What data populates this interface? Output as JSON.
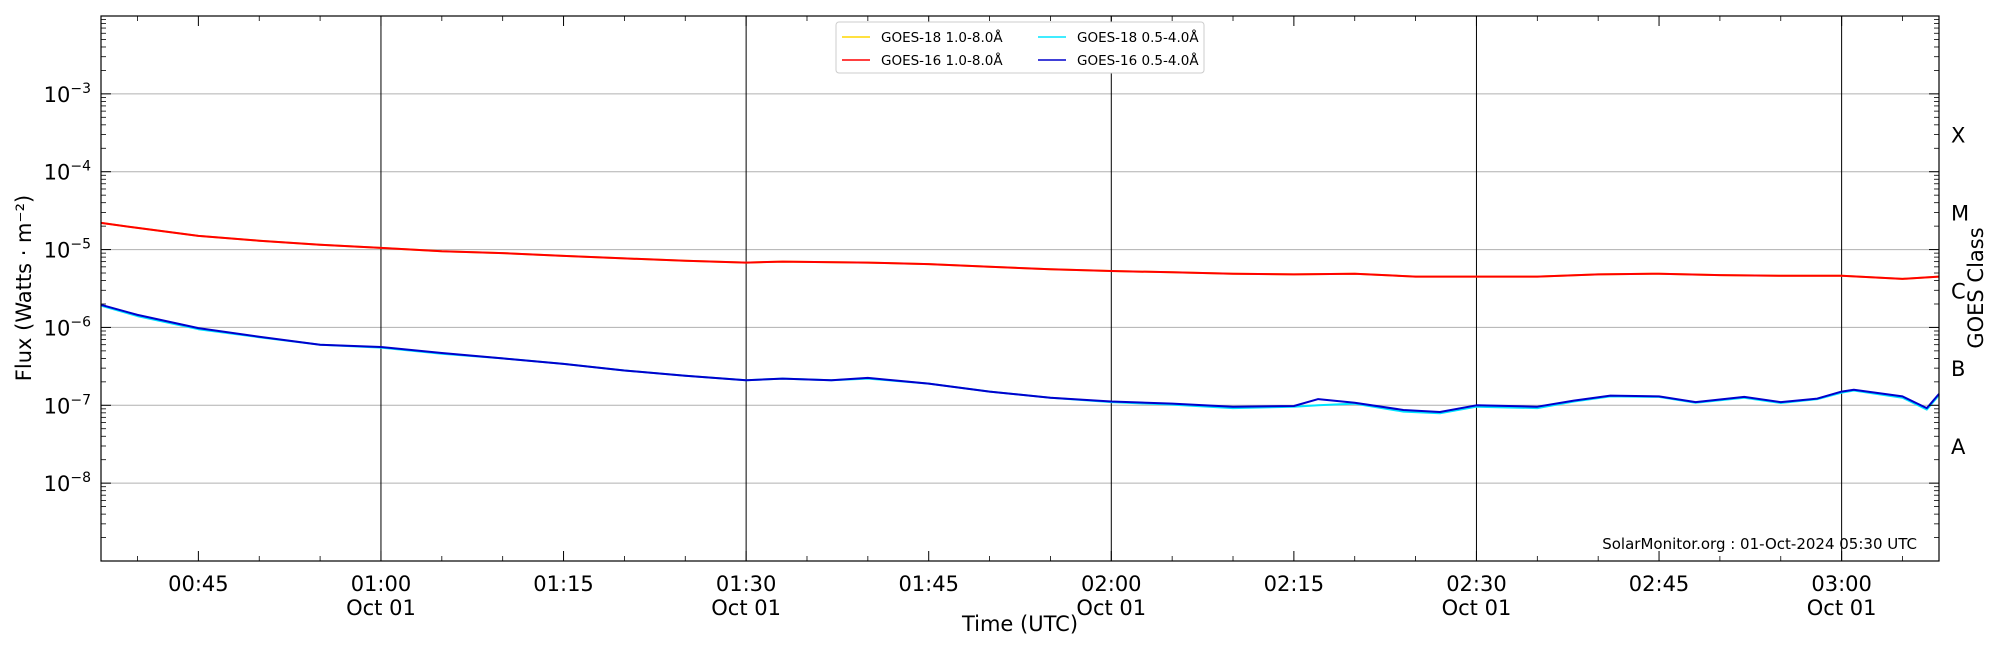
{
  "chart_data": {
    "type": "line",
    "title": "",
    "xlabel": "Time (UTC)",
    "ylabel": "Flux (Watts · m⁻²)",
    "y2label": "GOES Class",
    "yscale": "log",
    "ylim": [
      1e-09,
      0.01
    ],
    "xlim": [
      "00:37",
      "03:08"
    ],
    "grid": "y-major",
    "legend_position": "top-center",
    "credit": "SolarMonitor.org : 01-Oct-2024 05:30 UTC",
    "y_ticks": [
      {
        "value": 1e-08,
        "base": "10",
        "exp": "−8"
      },
      {
        "value": 1e-07,
        "base": "10",
        "exp": "−7"
      },
      {
        "value": 1e-06,
        "base": "10",
        "exp": "−6"
      },
      {
        "value": 1e-05,
        "base": "10",
        "exp": "−5"
      },
      {
        "value": 0.0001,
        "base": "10",
        "exp": "−4"
      },
      {
        "value": 0.001,
        "base": "10",
        "exp": "−3"
      }
    ],
    "x_ticks": [
      {
        "time": "00:45",
        "label": "00:45",
        "date": ""
      },
      {
        "time": "01:00",
        "label": "01:00",
        "date": "Oct 01"
      },
      {
        "time": "01:15",
        "label": "01:15",
        "date": ""
      },
      {
        "time": "01:30",
        "label": "01:30",
        "date": "Oct 01"
      },
      {
        "time": "01:45",
        "label": "01:45",
        "date": ""
      },
      {
        "time": "02:00",
        "label": "02:00",
        "date": "Oct 01"
      },
      {
        "time": "02:15",
        "label": "02:15",
        "date": ""
      },
      {
        "time": "02:30",
        "label": "02:30",
        "date": "Oct 01"
      },
      {
        "time": "02:45",
        "label": "02:45",
        "date": ""
      },
      {
        "time": "03:00",
        "label": "03:00",
        "date": "Oct 01"
      }
    ],
    "goes_classes": [
      {
        "label": "X",
        "value": 0.0003
      },
      {
        "label": "M",
        "value": 3e-05
      },
      {
        "label": "C",
        "value": 3e-06
      },
      {
        "label": "B",
        "value": 3e-07
      },
      {
        "label": "A",
        "value": 3e-08
      }
    ],
    "series": [
      {
        "name": "GOES-18 1.0-8.0Å",
        "color": "#ffd700",
        "x": [
          "00:37",
          "00:40",
          "00:45",
          "00:50",
          "00:55",
          "01:00",
          "01:05",
          "01:10",
          "01:15",
          "01:20",
          "01:25",
          "01:30",
          "01:33",
          "01:40",
          "01:45",
          "01:50",
          "01:55",
          "02:00",
          "02:05",
          "02:10",
          "02:15",
          "02:20",
          "02:25",
          "02:30",
          "02:35",
          "02:40",
          "02:45",
          "02:50",
          "02:55",
          "03:00",
          "03:05",
          "03:08"
        ],
        "y": [
          2.2e-05,
          1.9e-05,
          1.5e-05,
          1.3e-05,
          1.15e-05,
          1.05e-05,
          9.5e-06,
          9e-06,
          8.3e-06,
          7.7e-06,
          7.2e-06,
          6.8e-06,
          7e-06,
          6.8e-06,
          6.5e-06,
          6e-06,
          5.6e-06,
          5.3e-06,
          5.1e-06,
          4.9e-06,
          4.8e-06,
          4.9e-06,
          4.5e-06,
          4.5e-06,
          4.5e-06,
          4.8e-06,
          4.9e-06,
          4.7e-06,
          4.6e-06,
          4.6e-06,
          4.2e-06,
          4.5e-06
        ]
      },
      {
        "name": "GOES-16 1.0-8.0Å",
        "color": "#ff0000",
        "x": [
          "00:37",
          "00:40",
          "00:45",
          "00:50",
          "00:55",
          "01:00",
          "01:05",
          "01:10",
          "01:15",
          "01:20",
          "01:25",
          "01:30",
          "01:33",
          "01:40",
          "01:45",
          "01:50",
          "01:55",
          "02:00",
          "02:05",
          "02:10",
          "02:15",
          "02:20",
          "02:25",
          "02:30",
          "02:35",
          "02:40",
          "02:45",
          "02:50",
          "02:55",
          "03:00",
          "03:05",
          "03:08"
        ],
        "y": [
          2.2e-05,
          1.9e-05,
          1.5e-05,
          1.3e-05,
          1.15e-05,
          1.05e-05,
          9.5e-06,
          9e-06,
          8.3e-06,
          7.7e-06,
          7.2e-06,
          6.8e-06,
          7e-06,
          6.8e-06,
          6.5e-06,
          6e-06,
          5.6e-06,
          5.3e-06,
          5.1e-06,
          4.9e-06,
          4.8e-06,
          4.9e-06,
          4.5e-06,
          4.5e-06,
          4.5e-06,
          4.8e-06,
          4.9e-06,
          4.7e-06,
          4.6e-06,
          4.6e-06,
          4.2e-06,
          4.5e-06
        ]
      },
      {
        "name": "GOES-18 0.5-4.0Å",
        "color": "#00e5ff",
        "x": [
          "00:37",
          "00:40",
          "00:45",
          "00:50",
          "00:55",
          "01:00",
          "01:05",
          "01:10",
          "01:15",
          "01:20",
          "01:25",
          "01:30",
          "01:33",
          "01:37",
          "01:40",
          "01:45",
          "01:50",
          "01:55",
          "02:00",
          "02:05",
          "02:10",
          "02:15",
          "02:17",
          "02:20",
          "02:24",
          "02:27",
          "02:30",
          "02:35",
          "02:38",
          "02:41",
          "02:45",
          "02:48",
          "02:52",
          "02:55",
          "02:58",
          "03:00",
          "03:01",
          "03:05",
          "03:07",
          "03:08"
        ],
        "y": [
          1.9e-06,
          1.4e-06,
          9.5e-07,
          7.5e-07,
          6e-07,
          5.5e-07,
          4.6e-07,
          4e-07,
          3.4e-07,
          2.8e-07,
          2.4e-07,
          2.1e-07,
          2.2e-07,
          2.1e-07,
          2.2e-07,
          1.9e-07,
          1.5e-07,
          1.25e-07,
          1.1e-07,
          1.02e-07,
          9.2e-08,
          9.6e-08,
          1e-07,
          1.05e-07,
          8.3e-08,
          7.9e-08,
          9.6e-08,
          9.2e-08,
          1.12e-07,
          1.3e-07,
          1.28e-07,
          1.08e-07,
          1.25e-07,
          1.07e-07,
          1.2e-07,
          1.45e-07,
          1.55e-07,
          1.25e-07,
          8.8e-08,
          1.35e-07
        ]
      },
      {
        "name": "GOES-16 0.5-4.0Å",
        "color": "#0000cc",
        "x": [
          "00:37",
          "00:40",
          "00:45",
          "00:50",
          "00:55",
          "01:00",
          "01:05",
          "01:10",
          "01:15",
          "01:20",
          "01:25",
          "01:30",
          "01:33",
          "01:37",
          "01:40",
          "01:45",
          "01:50",
          "01:55",
          "02:00",
          "02:05",
          "02:10",
          "02:15",
          "02:17",
          "02:20",
          "02:24",
          "02:27",
          "02:30",
          "02:35",
          "02:38",
          "02:41",
          "02:45",
          "02:48",
          "02:52",
          "02:55",
          "02:58",
          "03:00",
          "03:01",
          "03:05",
          "03:07",
          "03:08"
        ],
        "y": [
          1.95e-06,
          1.45e-06,
          9.8e-07,
          7.6e-07,
          6e-07,
          5.6e-07,
          4.7e-07,
          4e-07,
          3.4e-07,
          2.8e-07,
          2.4e-07,
          2.1e-07,
          2.2e-07,
          2.1e-07,
          2.25e-07,
          1.9e-07,
          1.5e-07,
          1.25e-07,
          1.12e-07,
          1.05e-07,
          9.6e-08,
          9.8e-08,
          1.2e-07,
          1.08e-07,
          8.7e-08,
          8.2e-08,
          1e-07,
          9.6e-08,
          1.15e-07,
          1.33e-07,
          1.3e-07,
          1.1e-07,
          1.28e-07,
          1.1e-07,
          1.22e-07,
          1.5e-07,
          1.58e-07,
          1.3e-07,
          9.2e-08,
          1.4e-07
        ]
      }
    ]
  }
}
